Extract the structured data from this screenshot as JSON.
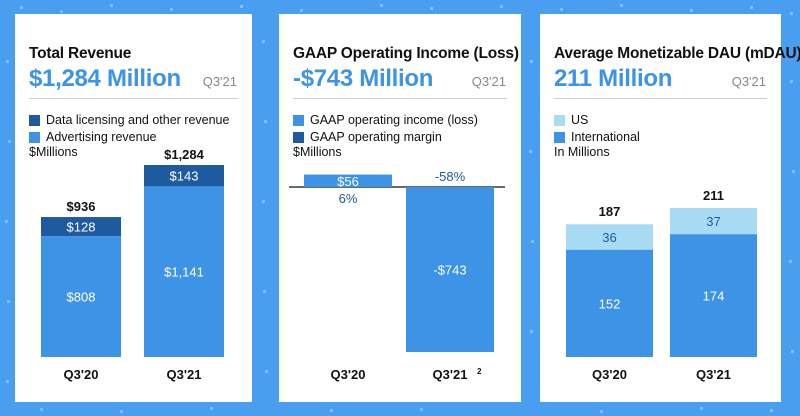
{
  "colors": {
    "background": "#4a9ef0",
    "light_blue": "#3d93e6",
    "dark_blue": "#1e5aa0",
    "pale_blue": "#a8dcf5",
    "panel": "#ffffff"
  },
  "panels": [
    {
      "title": "Total Revenue",
      "headline": "$1,284 Million",
      "period": "Q3'21",
      "legend": [
        "Data licensing and other revenue",
        "Advertising revenue"
      ],
      "units": "$Millions"
    },
    {
      "title": "GAAP Operating Income (Loss)",
      "headline": "-$743 Million",
      "period": "Q3'21",
      "legend": [
        "GAAP operating income (loss)",
        "GAAP operating margin"
      ],
      "units": "$Millions"
    },
    {
      "title": "Average Monetizable DAU (mDAU)",
      "headline": "211 Million",
      "period": "Q3'21",
      "legend": [
        "US",
        "International"
      ],
      "units": "In Millions"
    }
  ],
  "chart_data": [
    {
      "type": "bar",
      "stacked": true,
      "categories": [
        "Q3'20",
        "Q3'21"
      ],
      "series": [
        {
          "name": "Advertising revenue",
          "values": [
            808,
            1141
          ],
          "labels": [
            "$808",
            "$1,141"
          ]
        },
        {
          "name": "Data licensing and other revenue",
          "values": [
            128,
            143
          ],
          "labels": [
            "$128",
            "$143"
          ]
        }
      ],
      "totals": [
        936,
        1284
      ],
      "total_labels": [
        "$936",
        "$1,284"
      ]
    },
    {
      "type": "bar",
      "categories": [
        "Q3'20",
        "Q3'21"
      ],
      "category_footnotes": [
        "",
        "2"
      ],
      "series": [
        {
          "name": "GAAP operating income (loss)",
          "values": [
            56,
            -743
          ],
          "labels": [
            "$56",
            "-$743"
          ]
        },
        {
          "name": "GAAP operating margin",
          "values": [
            6,
            -58
          ],
          "labels": [
            "6%",
            "-58%"
          ],
          "unit": "%"
        }
      ]
    },
    {
      "type": "bar",
      "stacked": true,
      "categories": [
        "Q3'20",
        "Q3'21"
      ],
      "series": [
        {
          "name": "International",
          "values": [
            152,
            174
          ],
          "labels": [
            "152",
            "174"
          ]
        },
        {
          "name": "US",
          "values": [
            36,
            37
          ],
          "labels": [
            "36",
            "37"
          ]
        }
      ],
      "totals": [
        187,
        211
      ],
      "total_labels": [
        "187",
        "211"
      ]
    }
  ]
}
